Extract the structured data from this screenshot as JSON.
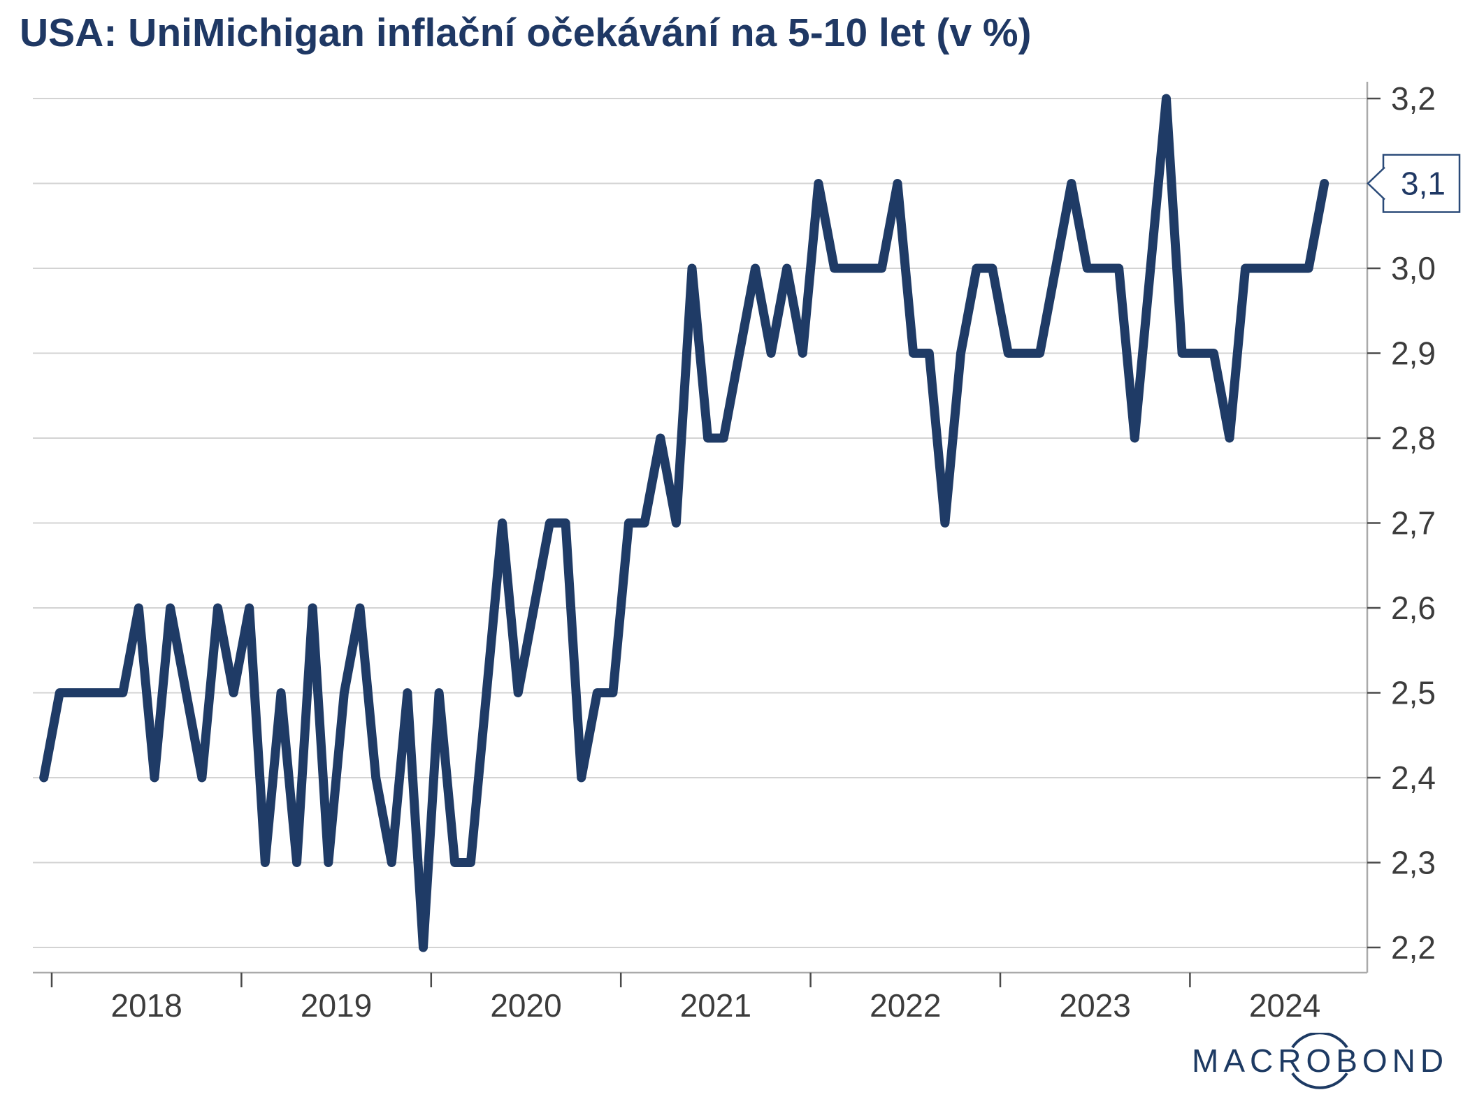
{
  "title": "USA: UniMichigan inflační očekávání na 5-10 let (v %)",
  "colors": {
    "title": "#1f3864",
    "line": "#1f3b66",
    "grid": "#d3d3d3",
    "axis": "#aaaaaa",
    "tick": "#4a4a4a",
    "tick_label": "#3c3c3c",
    "callout_border": "#2a4a78",
    "callout_text": "#1f3864",
    "logo": "#1d3a63"
  },
  "chart_data": {
    "type": "line",
    "title": "USA: UniMichigan inflační očekávání na 5-10 let (v %)",
    "xlabel": "",
    "ylabel": "",
    "y_axis_side": "right",
    "grid": "horizontal",
    "ylim": [
      2.2,
      3.2
    ],
    "yticks": [
      2.2,
      2.3,
      2.4,
      2.5,
      2.6,
      2.7,
      2.8,
      2.9,
      3.0,
      3.1,
      3.2
    ],
    "ytick_labels": [
      "2,2",
      "2,3",
      "2,4",
      "2,5",
      "2,6",
      "2,7",
      "2,8",
      "2,9",
      "3,0",
      "3,1",
      "3,2"
    ],
    "year_ticks": [
      2018,
      2019,
      2020,
      2021,
      2022,
      2023,
      2024
    ],
    "x_tick_labels": [
      "2018",
      "2019",
      "2020",
      "2021",
      "2022",
      "2023",
      "2024"
    ],
    "frequency": "monthly",
    "start_period": "2017-12",
    "end_period": "2024-09",
    "values": [
      2.4,
      2.5,
      2.5,
      2.5,
      2.5,
      2.5,
      2.6,
      2.4,
      2.6,
      2.5,
      2.4,
      2.6,
      2.5,
      2.6,
      2.3,
      2.5,
      2.3,
      2.6,
      2.3,
      2.5,
      2.6,
      2.4,
      2.3,
      2.5,
      2.2,
      2.5,
      2.3,
      2.3,
      2.5,
      2.7,
      2.5,
      2.6,
      2.7,
      2.7,
      2.4,
      2.5,
      2.5,
      2.7,
      2.7,
      2.8,
      2.7,
      3.0,
      2.8,
      2.8,
      2.9,
      3.0,
      2.9,
      3.0,
      2.9,
      3.1,
      3.0,
      3.0,
      3.0,
      3.0,
      3.1,
      2.9,
      2.9,
      2.7,
      2.9,
      3.0,
      3.0,
      2.9,
      2.9,
      2.9,
      3.0,
      3.1,
      3.0,
      3.0,
      3.0,
      2.8,
      3.0,
      3.2,
      2.9,
      2.9,
      2.9,
      2.8,
      3.0,
      3.0,
      3.0,
      3.0,
      3.0,
      3.1
    ],
    "last_value_label": "3,1"
  },
  "logo": {
    "left": "MACR",
    "circled": "O",
    "right": "BOND",
    "text": "MACROBOND"
  }
}
